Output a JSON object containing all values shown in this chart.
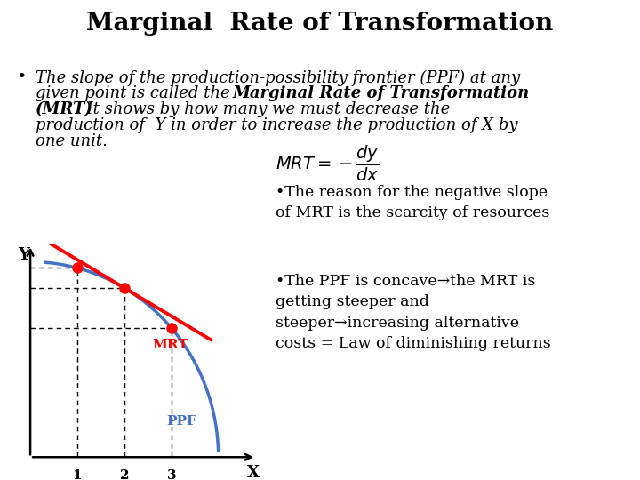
{
  "title": "Marginal  Rate of Transformation",
  "bg_color": "#ffffff",
  "ppf_color": "#4472C4",
  "mrt_line_color": "#FF0000",
  "dot_color": "#FF0000",
  "xlabel": "X",
  "ylabel": "Y",
  "xticks": [
    1,
    2,
    3
  ],
  "mrt_label": "MRT",
  "ppf_label": "PPF",
  "right_bullet1": "•The reason for the negative slope\nof MRT is the scarcity of resources",
  "right_bullet2": "•The PPF is concave→the MRT is\ngetting steeper and\nsteeper→increasing alternative\ncosts = Law of diminishing returns"
}
